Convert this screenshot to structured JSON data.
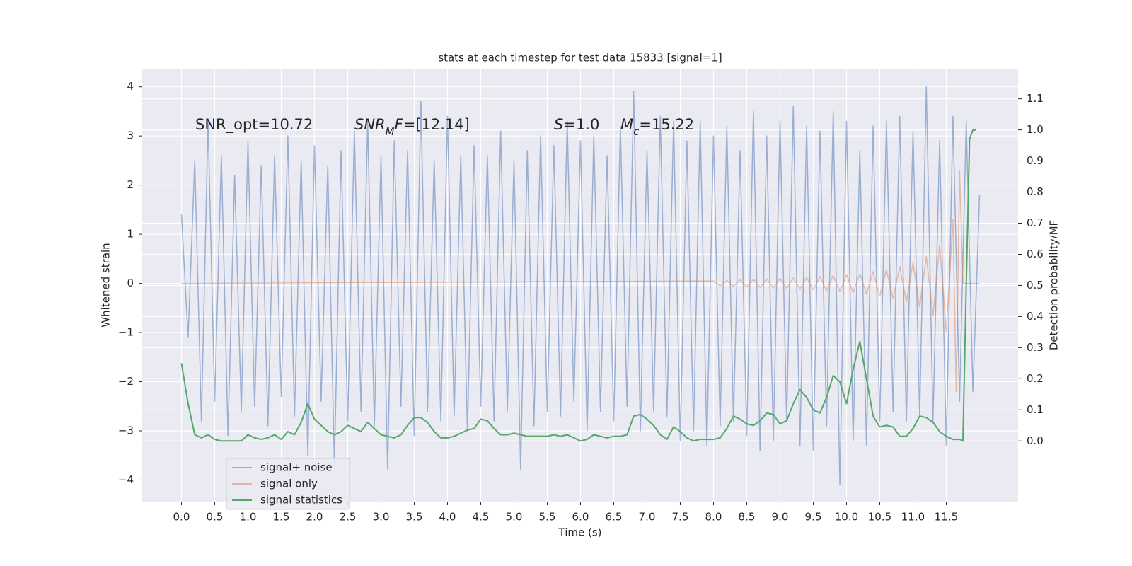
{
  "chart_data": {
    "type": "line",
    "title": "stats at each timestep for test data 15833 [signal=1]",
    "x_label": "Time (s)",
    "y_label": "Whitened strain",
    "y2_label": "Detection probability/MF",
    "xlim": [
      -0.59,
      12.58
    ],
    "ylim": [
      -4.44,
      4.37
    ],
    "y2lim": [
      -0.195,
      1.197
    ],
    "xticks": [
      {
        "value": 0,
        "label": "0.0"
      },
      0.5,
      {
        "value": 1,
        "label": "1.0"
      },
      1.5,
      {
        "value": 2,
        "label": "2.0"
      },
      2.5,
      {
        "value": 3,
        "label": "3.0"
      },
      3.5,
      {
        "value": 4,
        "label": "4.0"
      },
      4.5,
      {
        "value": 5,
        "label": "5.0"
      },
      5.5,
      {
        "value": 6,
        "label": "6.0"
      },
      6.5,
      {
        "value": 7,
        "label": "7.0"
      },
      7.5,
      {
        "value": 8,
        "label": "8.0"
      },
      8.5,
      {
        "value": 9,
        "label": "9.0"
      },
      9.5,
      {
        "value": 10,
        "label": "10.0"
      },
      10.5,
      {
        "value": 11,
        "label": "11.0"
      },
      11.5
    ],
    "yticks": [
      {
        "value": -4,
        "label": "−4"
      },
      {
        "value": -3,
        "label": "−3"
      },
      {
        "value": -2,
        "label": "−2"
      },
      {
        "value": -1,
        "label": "−1"
      },
      0,
      1,
      2,
      3,
      4
    ],
    "y2ticks": [
      {
        "value": 0,
        "label": "0.0"
      },
      0.1,
      0.2,
      0.3,
      0.4,
      0.5,
      0.6,
      0.7,
      0.8,
      0.9,
      {
        "value": 1,
        "label": "1.0"
      },
      1.1
    ],
    "grid": true,
    "legend_position": "lower left",
    "annotations": [
      [
        {
          "text": "SNR_opt=10.72"
        }
      ],
      [
        {
          "text": "SNR",
          "italic": true
        },
        {
          "text": "M",
          "italic": true,
          "sub": true
        },
        {
          "text": "F",
          "italic": true
        },
        {
          "text": "=[12.14]"
        }
      ],
      [
        {
          "text": "S",
          "italic": true
        },
        {
          "text": "=1.0"
        }
      ],
      [
        {
          "text": "M",
          "italic": true
        },
        {
          "text": "c",
          "italic": true,
          "sub": true
        },
        {
          "text": "=15.22"
        }
      ]
    ],
    "series": [
      {
        "name": "signal+ noise",
        "color": "#4c72b0",
        "opacity": 0.5,
        "x": [
          0.0,
          0.1,
          0.2,
          0.3,
          0.4,
          0.5,
          0.6,
          0.7,
          0.8,
          0.9,
          1.0,
          1.1,
          1.2,
          1.3,
          1.4,
          1.5,
          1.6,
          1.7,
          1.8,
          1.9,
          2.0,
          2.1,
          2.2,
          2.3,
          2.4,
          2.5,
          2.6,
          2.7,
          2.8,
          2.9,
          3.0,
          3.1,
          3.2,
          3.3,
          3.4,
          3.5,
          3.6,
          3.7,
          3.8,
          3.9,
          4.0,
          4.1,
          4.2,
          4.3,
          4.4,
          4.5,
          4.6,
          4.7,
          4.8,
          4.9,
          5.0,
          5.1,
          5.2,
          5.3,
          5.4,
          5.5,
          5.6,
          5.7,
          5.8,
          5.9,
          6.0,
          6.1,
          6.2,
          6.3,
          6.4,
          6.5,
          6.6,
          6.7,
          6.8,
          6.9,
          7.0,
          7.1,
          7.2,
          7.3,
          7.4,
          7.5,
          7.6,
          7.7,
          7.8,
          7.9,
          8.0,
          8.1,
          8.2,
          8.3,
          8.4,
          8.5,
          8.6,
          8.7,
          8.8,
          8.9,
          9.0,
          9.1,
          9.2,
          9.3,
          9.4,
          9.5,
          9.6,
          9.7,
          9.8,
          9.9,
          10.0,
          10.1,
          10.2,
          10.3,
          10.4,
          10.5,
          10.6,
          10.7,
          10.8,
          10.9,
          11.0,
          11.1,
          11.2,
          11.3,
          11.4,
          11.5,
          11.6,
          11.7,
          11.8,
          11.9,
          12.0
        ],
        "values": [
          1.4,
          -1.1,
          2.5,
          -2.8,
          3.3,
          -2.4,
          2.6,
          -3.1,
          2.2,
          -2.6,
          2.9,
          -2.5,
          2.4,
          -2.9,
          2.6,
          -2.3,
          3.0,
          -2.7,
          2.5,
          -3.5,
          2.8,
          -2.4,
          2.4,
          -3.7,
          2.7,
          -2.8,
          3.1,
          -2.6,
          3.3,
          -2.9,
          2.6,
          -3.8,
          2.9,
          -2.5,
          2.7,
          -3.1,
          3.7,
          -2.6,
          2.5,
          -2.8,
          3.4,
          -2.7,
          2.6,
          -3.0,
          2.8,
          -2.5,
          2.6,
          -2.8,
          3.1,
          -2.6,
          2.5,
          -3.8,
          2.7,
          -2.9,
          3.0,
          -2.6,
          2.8,
          -2.7,
          3.3,
          -2.4,
          2.9,
          -3.0,
          3.0,
          -2.6,
          2.6,
          -2.8,
          3.2,
          -2.5,
          3.9,
          -3.0,
          2.7,
          -2.6,
          3.4,
          -2.7,
          3.3,
          -3.2,
          2.9,
          -3.0,
          3.3,
          -3.3,
          3.0,
          -2.9,
          3.2,
          -2.8,
          2.7,
          -3.1,
          3.5,
          -3.4,
          3.0,
          -3.2,
          3.3,
          -2.8,
          3.6,
          -3.3,
          3.2,
          -3.4,
          3.1,
          -2.9,
          3.5,
          -4.1,
          3.3,
          -3.2,
          2.7,
          -3.3,
          3.2,
          -2.8,
          3.3,
          -2.6,
          3.4,
          -2.8,
          3.1,
          -2.7,
          4.0,
          -2.8,
          2.9,
          -3.3,
          3.4,
          -2.4,
          3.3,
          -2.2,
          1.8
        ]
      },
      {
        "name": "signal only",
        "color": "#dd8452",
        "opacity": 0.5,
        "x": [
          0.0,
          8.0,
          8.1,
          8.2,
          8.3,
          8.4,
          8.5,
          8.6,
          8.7,
          8.8,
          8.9,
          9.0,
          9.1,
          9.2,
          9.3,
          9.4,
          9.5,
          9.6,
          9.7,
          9.8,
          9.9,
          10.0,
          10.1,
          10.2,
          10.3,
          10.4,
          10.5,
          10.6,
          10.7,
          10.8,
          10.9,
          11.0,
          11.1,
          11.2,
          11.3,
          11.4,
          11.5,
          11.6,
          11.65,
          11.7,
          11.75,
          11.8,
          11.9,
          12.0
        ],
        "values": [
          0.0,
          0.05,
          -0.05,
          0.06,
          -0.06,
          0.07,
          -0.07,
          0.08,
          -0.08,
          0.09,
          -0.09,
          0.1,
          -0.1,
          0.11,
          -0.11,
          0.12,
          -0.13,
          0.14,
          -0.15,
          0.16,
          -0.17,
          0.18,
          -0.19,
          0.2,
          -0.22,
          0.24,
          -0.26,
          0.28,
          -0.31,
          0.34,
          -0.38,
          0.42,
          -0.48,
          0.55,
          -0.65,
          0.78,
          -0.98,
          1.3,
          -2.2,
          2.3,
          0.0,
          0.0,
          0.0,
          0.0
        ]
      },
      {
        "name": "signal statistics",
        "color": "#55a868",
        "opacity": 1,
        "axis": "y2",
        "x": [
          0.0,
          0.1,
          0.2,
          0.3,
          0.4,
          0.5,
          0.6,
          0.7,
          0.8,
          0.9,
          1.0,
          1.1,
          1.2,
          1.3,
          1.4,
          1.5,
          1.6,
          1.7,
          1.8,
          1.9,
          2.0,
          2.1,
          2.2,
          2.3,
          2.4,
          2.5,
          2.6,
          2.7,
          2.8,
          2.9,
          3.0,
          3.1,
          3.2,
          3.3,
          3.4,
          3.5,
          3.6,
          3.7,
          3.8,
          3.9,
          4.0,
          4.1,
          4.2,
          4.3,
          4.4,
          4.5,
          4.6,
          4.7,
          4.8,
          4.9,
          5.0,
          5.1,
          5.2,
          5.3,
          5.4,
          5.5,
          5.6,
          5.7,
          5.8,
          5.9,
          6.0,
          6.1,
          6.2,
          6.3,
          6.4,
          6.5,
          6.6,
          6.7,
          6.8,
          6.9,
          7.0,
          7.1,
          7.2,
          7.3,
          7.4,
          7.5,
          7.6,
          7.7,
          7.8,
          7.9,
          8.0,
          8.1,
          8.2,
          8.3,
          8.4,
          8.5,
          8.6,
          8.7,
          8.8,
          8.9,
          9.0,
          9.1,
          9.2,
          9.3,
          9.4,
          9.5,
          9.6,
          9.7,
          9.8,
          9.9,
          10.0,
          10.1,
          10.2,
          10.3,
          10.4,
          10.5,
          10.6,
          10.7,
          10.8,
          10.9,
          11.0,
          11.1,
          11.2,
          11.3,
          11.4,
          11.5,
          11.6,
          11.7,
          11.75,
          11.8,
          11.85,
          11.9,
          11.95
        ],
        "values": [
          0.25,
          0.12,
          0.02,
          0.01,
          0.02,
          0.005,
          0.0,
          0.0,
          0.0,
          0.0,
          0.02,
          0.01,
          0.005,
          0.01,
          0.02,
          0.005,
          0.03,
          0.02,
          0.06,
          0.12,
          0.07,
          0.05,
          0.03,
          0.02,
          0.03,
          0.05,
          0.04,
          0.03,
          0.06,
          0.04,
          0.02,
          0.015,
          0.01,
          0.02,
          0.05,
          0.075,
          0.075,
          0.06,
          0.03,
          0.01,
          0.01,
          0.015,
          0.025,
          0.035,
          0.04,
          0.07,
          0.065,
          0.04,
          0.02,
          0.02,
          0.025,
          0.02,
          0.015,
          0.015,
          0.015,
          0.015,
          0.02,
          0.015,
          0.02,
          0.01,
          0.0,
          0.005,
          0.02,
          0.015,
          0.01,
          0.015,
          0.015,
          0.02,
          0.08,
          0.085,
          0.07,
          0.05,
          0.02,
          0.005,
          0.045,
          0.03,
          0.01,
          0.0,
          0.005,
          0.005,
          0.005,
          0.01,
          0.04,
          0.08,
          0.07,
          0.055,
          0.05,
          0.065,
          0.09,
          0.085,
          0.055,
          0.065,
          0.12,
          0.165,
          0.14,
          0.1,
          0.09,
          0.14,
          0.21,
          0.19,
          0.12,
          0.23,
          0.32,
          0.2,
          0.08,
          0.045,
          0.05,
          0.045,
          0.015,
          0.015,
          0.04,
          0.08,
          0.075,
          0.06,
          0.03,
          0.015,
          0.005,
          0.005,
          0.0,
          0.5,
          0.97,
          1.0,
          1.0
        ]
      }
    ]
  }
}
